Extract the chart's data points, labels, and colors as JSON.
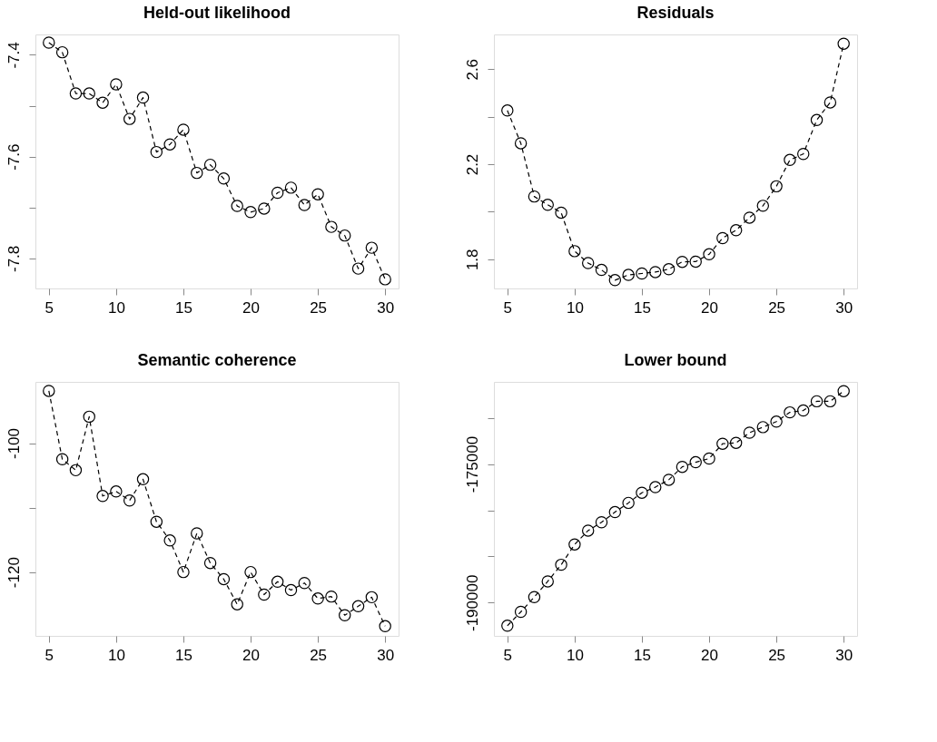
{
  "chart_data": [
    {
      "type": "line",
      "title": "Held-out likelihood",
      "x": [
        5,
        6,
        7,
        8,
        9,
        10,
        11,
        12,
        13,
        14,
        15,
        16,
        17,
        18,
        19,
        20,
        21,
        22,
        23,
        24,
        25,
        26,
        27,
        28,
        29,
        30
      ],
      "series": [
        {
          "color": "#000000",
          "values": [
            -7.376,
            -7.395,
            -7.476,
            -7.476,
            -7.494,
            -7.458,
            -7.526,
            -7.484,
            -7.591,
            -7.576,
            -7.547,
            -7.632,
            -7.616,
            -7.643,
            -7.697,
            -7.709,
            -7.702,
            -7.671,
            -7.661,
            -7.695,
            -7.674,
            -7.738,
            -7.755,
            -7.82,
            -7.779,
            -7.841
          ]
        }
      ],
      "xlim": [
        4,
        31
      ],
      "xticks": [
        5,
        10,
        15,
        20,
        25,
        30
      ],
      "ylim": [
        -7.859,
        -7.36
      ],
      "yticks": [
        -7.4,
        {
          "value": -7.5,
          "label": null
        },
        -7.6,
        {
          "value": -7.7,
          "label": null
        },
        -7.8
      ],
      "marker": "circle",
      "line_style": "dashed",
      "grid": false
    },
    {
      "type": "line",
      "title": "Residuals",
      "x": [
        5,
        6,
        7,
        8,
        9,
        10,
        11,
        12,
        13,
        14,
        15,
        16,
        17,
        18,
        19,
        20,
        21,
        22,
        23,
        24,
        25,
        26,
        27,
        28,
        29,
        30
      ],
      "series": [
        {
          "color": "#000000",
          "values": [
            2.426,
            2.288,
            2.064,
            2.029,
            1.996,
            1.834,
            1.784,
            1.755,
            1.712,
            1.734,
            1.74,
            1.746,
            1.758,
            1.789,
            1.79,
            1.821,
            1.889,
            1.922,
            1.975,
            2.025,
            2.107,
            2.218,
            2.243,
            2.386,
            2.46,
            2.707
          ]
        }
      ],
      "xlim": [
        4,
        31
      ],
      "xticks": [
        5,
        10,
        15,
        20,
        25,
        30
      ],
      "ylim": [
        1.677,
        2.746
      ],
      "yticks": [
        1.8,
        {
          "value": 2.0,
          "label": null
        },
        2.2,
        {
          "value": 2.4,
          "label": null
        },
        2.6
      ],
      "marker": "circle",
      "line_style": "dashed",
      "grid": false
    },
    {
      "type": "line",
      "title": "Semantic coherence",
      "x": [
        5,
        6,
        7,
        8,
        9,
        10,
        11,
        12,
        13,
        14,
        15,
        16,
        17,
        18,
        19,
        20,
        21,
        22,
        23,
        24,
        25,
        26,
        27,
        28,
        29,
        30
      ],
      "series": [
        {
          "color": "#000000",
          "values": [
            -91.9,
            -102.5,
            -104.2,
            -95.9,
            -108.2,
            -107.5,
            -108.9,
            -105.6,
            -112.2,
            -115.1,
            -120.0,
            -114.0,
            -118.6,
            -121.1,
            -125.0,
            -120.0,
            -123.5,
            -121.5,
            -122.8,
            -121.7,
            -124.1,
            -123.8,
            -126.7,
            -125.3,
            -123.9,
            -128.4
          ]
        }
      ],
      "xlim": [
        4,
        31
      ],
      "xticks": [
        5,
        10,
        15,
        20,
        25,
        30
      ],
      "ylim": [
        -129.9,
        -90.5
      ],
      "yticks": [
        -100,
        {
          "value": -110,
          "label": null
        },
        -120
      ],
      "marker": "circle",
      "line_style": "dashed",
      "grid": false
    },
    {
      "type": "line",
      "title": "Lower bound",
      "x": [
        5,
        6,
        7,
        8,
        9,
        10,
        11,
        12,
        13,
        14,
        15,
        16,
        17,
        18,
        19,
        20,
        21,
        22,
        23,
        24,
        25,
        26,
        27,
        28,
        29,
        30
      ],
      "series": [
        {
          "color": "#000000",
          "values": [
            -192500,
            -191000,
            -189400,
            -187700,
            -185900,
            -183700,
            -182200,
            -181300,
            -180200,
            -179200,
            -178100,
            -177500,
            -176700,
            -175300,
            -174800,
            -174400,
            -172800,
            -172700,
            -171600,
            -171000,
            -170400,
            -169400,
            -169200,
            -168200,
            -168200,
            -167100
          ]
        }
      ],
      "xlim": [
        4,
        31
      ],
      "xticks": [
        5,
        10,
        15,
        20,
        25,
        30
      ],
      "ylim": [
        -193600,
        -166100
      ],
      "yticks": [
        {
          "value": -170000,
          "label": null
        },
        -175000,
        {
          "value": -180000,
          "label": null
        },
        {
          "value": -185000,
          "label": null
        },
        -190000
      ],
      "marker": "circle",
      "line_style": "dashed",
      "grid": false
    }
  ]
}
